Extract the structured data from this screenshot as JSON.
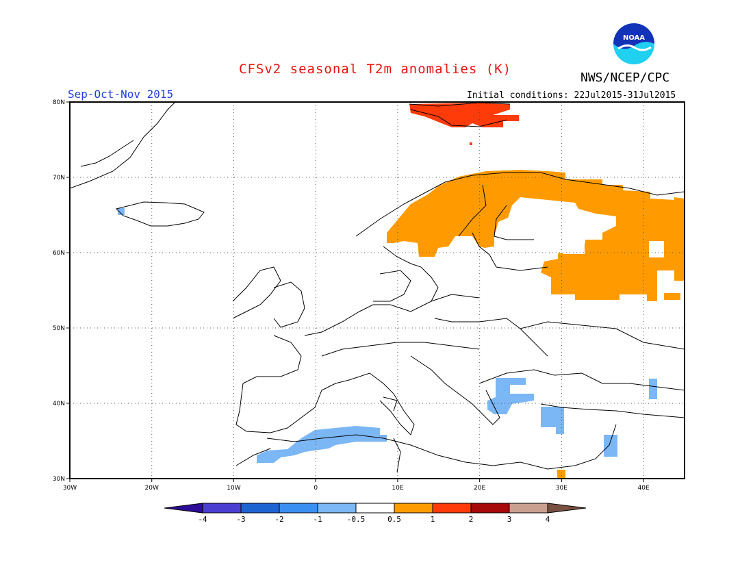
{
  "header": {
    "title": "CFSv2 seasonal T2m anomalies (K)",
    "agency": "NWS/NCEP/CPC",
    "season": "Sep-Oct-Nov 2015",
    "initial_conditions": "Initial conditions: 22Jul2015-31Jul2015",
    "logo_text": "NOAA"
  },
  "map": {
    "lon_range": [
      -30,
      45
    ],
    "lat_range": [
      30,
      80
    ],
    "lon_ticks": [
      {
        "value": -30,
        "label": "30W"
      },
      {
        "value": -20,
        "label": "20W"
      },
      {
        "value": -10,
        "label": "10W"
      },
      {
        "value": 0,
        "label": "0"
      },
      {
        "value": 10,
        "label": "10E"
      },
      {
        "value": 20,
        "label": "20E"
      },
      {
        "value": 30,
        "label": "30E"
      },
      {
        "value": 40,
        "label": "40E"
      }
    ],
    "lat_ticks": [
      {
        "value": 30,
        "label": "30N"
      },
      {
        "value": 40,
        "label": "40N"
      },
      {
        "value": 50,
        "label": "50N"
      },
      {
        "value": 60,
        "label": "60N"
      },
      {
        "value": 70,
        "label": "70N"
      },
      {
        "value": 80,
        "label": "80N"
      }
    ],
    "grid": "dotted"
  },
  "colorbar": {
    "colors": [
      "#2d0d97",
      "#4a3fd1",
      "#1f63d3",
      "#3b8ff0",
      "#7bb6f5",
      "#ffffff",
      "#ff9b00",
      "#ff3b0a",
      "#a60a0a",
      "#c9a08f",
      "#7a5040"
    ],
    "labels": [
      "-4",
      "-3",
      "-2",
      "-1",
      "-0.5",
      "0.5",
      "1",
      "2",
      "3",
      "4"
    ]
  }
}
